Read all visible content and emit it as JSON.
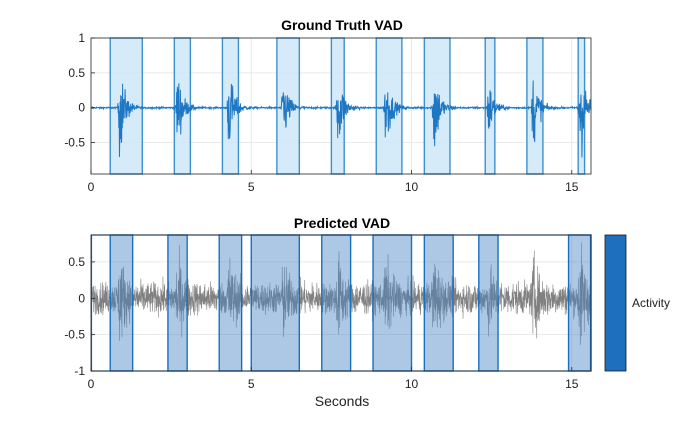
{
  "chart_data": [
    {
      "type": "line",
      "title": "Ground Truth VAD",
      "xlabel": "",
      "ylabel": "",
      "xlim": [
        0,
        15.6
      ],
      "ylim": [
        -0.95,
        1
      ],
      "xticks": [
        0,
        5,
        10,
        15
      ],
      "yticks": [
        -0.5,
        0,
        0.5,
        1
      ],
      "xtick_labels": [
        "0",
        "5",
        "10",
        "15"
      ],
      "ytick_labels": [
        "-0.5",
        "0",
        "0.5",
        "1"
      ],
      "grid": true,
      "series_color": "#1f77c4",
      "region_fill": "#cfe8f8",
      "region_edge": "#3c90d0",
      "speech_regions": [
        [
          0.6,
          1.6
        ],
        [
          2.6,
          3.1
        ],
        [
          4.1,
          4.6
        ],
        [
          5.8,
          6.5
        ],
        [
          7.5,
          7.9
        ],
        [
          8.9,
          9.7
        ],
        [
          10.4,
          11.2
        ],
        [
          12.3,
          12.6
        ],
        [
          13.6,
          14.1
        ],
        [
          15.2,
          15.4
        ]
      ],
      "bursts": [
        {
          "t": 0.9,
          "amp": 0.7
        },
        {
          "t": 2.7,
          "amp": 0.6
        },
        {
          "t": 4.3,
          "amp": 0.65
        },
        {
          "t": 6.0,
          "amp": 0.55
        },
        {
          "t": 7.7,
          "amp": 0.65
        },
        {
          "t": 9.2,
          "amp": 0.6
        },
        {
          "t": 10.7,
          "amp": 0.75
        },
        {
          "t": 12.4,
          "amp": 0.45
        },
        {
          "t": 13.8,
          "amp": 0.6
        },
        {
          "t": 15.25,
          "amp": 0.9
        }
      ]
    },
    {
      "type": "line",
      "title": "Predicted VAD",
      "xlabel": "Seconds",
      "ylabel": "",
      "xlim": [
        0,
        15.6
      ],
      "ylim": [
        -1,
        0.87
      ],
      "xticks": [
        0,
        5,
        10,
        15
      ],
      "yticks": [
        -1,
        -0.5,
        0,
        0.5
      ],
      "xtick_labels": [
        "0",
        "5",
        "10",
        "15"
      ],
      "ytick_labels": [
        "-1",
        "-0.5",
        "0",
        "0.5"
      ],
      "grid": true,
      "series_color": "#808080",
      "region_fill": "#4a86c4",
      "region_edge": "#1a6fc0",
      "speech_regions": [
        [
          0.6,
          1.3
        ],
        [
          2.4,
          3.0
        ],
        [
          4.0,
          4.7
        ],
        [
          5.0,
          6.5
        ],
        [
          7.2,
          8.1
        ],
        [
          8.8,
          10.0
        ],
        [
          10.4,
          11.3
        ],
        [
          12.1,
          12.7
        ],
        [
          14.9,
          15.6
        ]
      ],
      "outer_region": [
        0,
        15.6
      ],
      "bursts": [
        {
          "t": 0.9,
          "amp": 0.7
        },
        {
          "t": 2.7,
          "amp": 0.6
        },
        {
          "t": 4.3,
          "amp": 0.65
        },
        {
          "t": 6.0,
          "amp": 0.55
        },
        {
          "t": 7.7,
          "amp": 0.65
        },
        {
          "t": 9.2,
          "amp": 0.6
        },
        {
          "t": 10.7,
          "amp": 0.75
        },
        {
          "t": 12.4,
          "amp": 0.45
        },
        {
          "t": 13.8,
          "amp": 0.6
        },
        {
          "t": 15.25,
          "amp": 0.9
        }
      ],
      "noise_amplitude": 0.28,
      "legend": {
        "label": "Activity",
        "color": "#1f6fbf",
        "placement": "right"
      }
    }
  ]
}
